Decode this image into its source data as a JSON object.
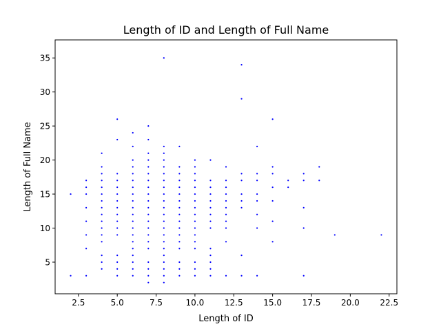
{
  "chart_data": {
    "type": "scatter",
    "title": "Length of ID and Length of Full Name",
    "xlabel": "Length of ID",
    "ylabel": "Length of Full Name",
    "xlim": [
      1.0,
      23.0
    ],
    "ylim": [
      0.35,
      37.65
    ],
    "xticks": [
      2.5,
      5.0,
      7.5,
      10.0,
      12.5,
      15.0,
      17.5,
      20.0,
      22.5
    ],
    "xtick_labels": [
      "2.5",
      "5.0",
      "7.5",
      "10.0",
      "12.5",
      "15.0",
      "17.5",
      "20.0",
      "22.5"
    ],
    "yticks": [
      5,
      10,
      15,
      20,
      25,
      30,
      35
    ],
    "ytick_labels": [
      "5",
      "10",
      "15",
      "20",
      "25",
      "30",
      "35"
    ],
    "grid": false,
    "marker_color": "#0000ff",
    "series": [
      {
        "points": [
          [
            2,
            3
          ],
          [
            2,
            15
          ],
          [
            3,
            3
          ],
          [
            3,
            7
          ],
          [
            3,
            9
          ],
          [
            3,
            11
          ],
          [
            3,
            13
          ],
          [
            3,
            15
          ],
          [
            3,
            16
          ],
          [
            3,
            17
          ],
          [
            4,
            4
          ],
          [
            4,
            5
          ],
          [
            4,
            6
          ],
          [
            4,
            8
          ],
          [
            4,
            9
          ],
          [
            4,
            10
          ],
          [
            4,
            11
          ],
          [
            4,
            12
          ],
          [
            4,
            13
          ],
          [
            4,
            14
          ],
          [
            4,
            15
          ],
          [
            4,
            16
          ],
          [
            4,
            17
          ],
          [
            4,
            18
          ],
          [
            4,
            19
          ],
          [
            4,
            21
          ],
          [
            5,
            3
          ],
          [
            5,
            4
          ],
          [
            5,
            5
          ],
          [
            5,
            6
          ],
          [
            5,
            9
          ],
          [
            5,
            10
          ],
          [
            5,
            11
          ],
          [
            5,
            12
          ],
          [
            5,
            13
          ],
          [
            5,
            14
          ],
          [
            5,
            15
          ],
          [
            5,
            16
          ],
          [
            5,
            17
          ],
          [
            5,
            18
          ],
          [
            5,
            23
          ],
          [
            5,
            26
          ],
          [
            6,
            3
          ],
          [
            6,
            4
          ],
          [
            6,
            5
          ],
          [
            6,
            6
          ],
          [
            6,
            7
          ],
          [
            6,
            8
          ],
          [
            6,
            9
          ],
          [
            6,
            10
          ],
          [
            6,
            11
          ],
          [
            6,
            12
          ],
          [
            6,
            13
          ],
          [
            6,
            14
          ],
          [
            6,
            15
          ],
          [
            6,
            16
          ],
          [
            6,
            17
          ],
          [
            6,
            18
          ],
          [
            6,
            19
          ],
          [
            6,
            20
          ],
          [
            6,
            22
          ],
          [
            6,
            24
          ],
          [
            7,
            2
          ],
          [
            7,
            3
          ],
          [
            7,
            4
          ],
          [
            7,
            5
          ],
          [
            7,
            7
          ],
          [
            7,
            8
          ],
          [
            7,
            9
          ],
          [
            7,
            10
          ],
          [
            7,
            11
          ],
          [
            7,
            12
          ],
          [
            7,
            13
          ],
          [
            7,
            14
          ],
          [
            7,
            15
          ],
          [
            7,
            16
          ],
          [
            7,
            17
          ],
          [
            7,
            18
          ],
          [
            7,
            19
          ],
          [
            7,
            20
          ],
          [
            7,
            21
          ],
          [
            7,
            23
          ],
          [
            7,
            25
          ],
          [
            8,
            2
          ],
          [
            8,
            3
          ],
          [
            8,
            4
          ],
          [
            8,
            5
          ],
          [
            8,
            6
          ],
          [
            8,
            7
          ],
          [
            8,
            8
          ],
          [
            8,
            9
          ],
          [
            8,
            10
          ],
          [
            8,
            11
          ],
          [
            8,
            12
          ],
          [
            8,
            13
          ],
          [
            8,
            14
          ],
          [
            8,
            15
          ],
          [
            8,
            16
          ],
          [
            8,
            17
          ],
          [
            8,
            18
          ],
          [
            8,
            19
          ],
          [
            8,
            20
          ],
          [
            8,
            21
          ],
          [
            8,
            22
          ],
          [
            8,
            35
          ],
          [
            9,
            3
          ],
          [
            9,
            4
          ],
          [
            9,
            5
          ],
          [
            9,
            7
          ],
          [
            9,
            8
          ],
          [
            9,
            9
          ],
          [
            9,
            10
          ],
          [
            9,
            11
          ],
          [
            9,
            12
          ],
          [
            9,
            13
          ],
          [
            9,
            14
          ],
          [
            9,
            15
          ],
          [
            9,
            16
          ],
          [
            9,
            17
          ],
          [
            9,
            18
          ],
          [
            9,
            19
          ],
          [
            9,
            22
          ],
          [
            10,
            3
          ],
          [
            10,
            4
          ],
          [
            10,
            5
          ],
          [
            10,
            7
          ],
          [
            10,
            8
          ],
          [
            10,
            9
          ],
          [
            10,
            10
          ],
          [
            10,
            11
          ],
          [
            10,
            12
          ],
          [
            10,
            13
          ],
          [
            10,
            14
          ],
          [
            10,
            15
          ],
          [
            10,
            16
          ],
          [
            10,
            17
          ],
          [
            10,
            18
          ],
          [
            10,
            19
          ],
          [
            10,
            20
          ],
          [
            11,
            3
          ],
          [
            11,
            4
          ],
          [
            11,
            5
          ],
          [
            11,
            6
          ],
          [
            11,
            7
          ],
          [
            11,
            10
          ],
          [
            11,
            11
          ],
          [
            11,
            12
          ],
          [
            11,
            13
          ],
          [
            11,
            14
          ],
          [
            11,
            15
          ],
          [
            11,
            16
          ],
          [
            11,
            17
          ],
          [
            11,
            20
          ],
          [
            12,
            3
          ],
          [
            12,
            8
          ],
          [
            12,
            10
          ],
          [
            12,
            11
          ],
          [
            12,
            12
          ],
          [
            12,
            13
          ],
          [
            12,
            14
          ],
          [
            12,
            15
          ],
          [
            12,
            16
          ],
          [
            12,
            17
          ],
          [
            12,
            19
          ],
          [
            13,
            3
          ],
          [
            13,
            6
          ],
          [
            13,
            13
          ],
          [
            13,
            14
          ],
          [
            13,
            15
          ],
          [
            13,
            17
          ],
          [
            13,
            18
          ],
          [
            13,
            29
          ],
          [
            13,
            34
          ],
          [
            14,
            3
          ],
          [
            14,
            10
          ],
          [
            14,
            12
          ],
          [
            14,
            14
          ],
          [
            14,
            15
          ],
          [
            14,
            17
          ],
          [
            14,
            18
          ],
          [
            14,
            22
          ],
          [
            15,
            8
          ],
          [
            15,
            11
          ],
          [
            15,
            14
          ],
          [
            15,
            16
          ],
          [
            15,
            18
          ],
          [
            15,
            19
          ],
          [
            15,
            26
          ],
          [
            16,
            16
          ],
          [
            16,
            17
          ],
          [
            17,
            3
          ],
          [
            17,
            10
          ],
          [
            17,
            13
          ],
          [
            17,
            17
          ],
          [
            17,
            18
          ],
          [
            18,
            17
          ],
          [
            18,
            19
          ],
          [
            19,
            9
          ],
          [
            22,
            9
          ]
        ]
      }
    ]
  }
}
